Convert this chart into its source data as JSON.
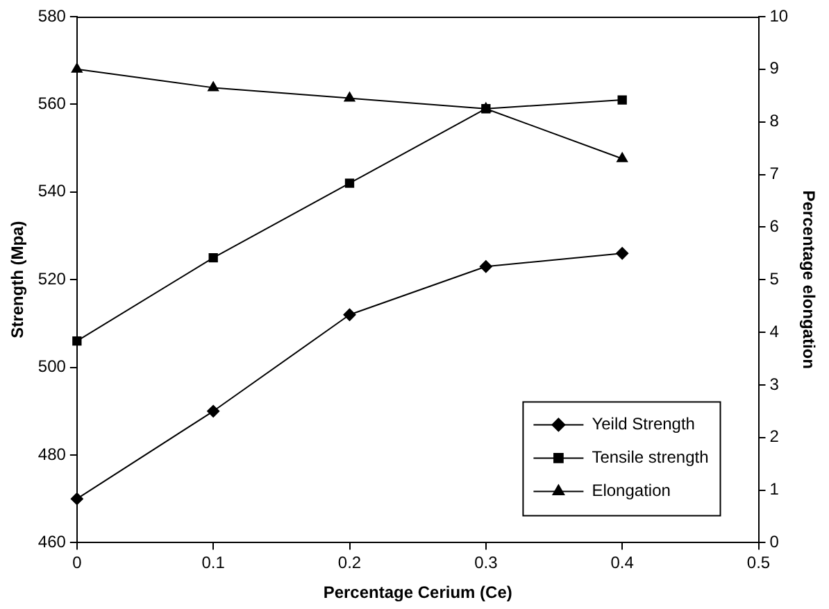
{
  "chart_data": {
    "type": "line",
    "xlabel": "Percentage Cerium (Ce)",
    "ylabel": "Strength (Mpa)",
    "y2label": "Percentage elongation",
    "x": [
      0,
      0.1,
      0.2,
      0.3,
      0.4
    ],
    "xlim": [
      0,
      0.5
    ],
    "xticks": [
      0,
      0.1,
      0.2,
      0.3,
      0.4,
      0.5
    ],
    "ylim": [
      460,
      580
    ],
    "yticks": [
      460,
      480,
      500,
      520,
      540,
      560,
      580
    ],
    "y2lim": [
      0,
      10
    ],
    "y2ticks": [
      0,
      1,
      2,
      3,
      4,
      5,
      6,
      7,
      8,
      9,
      10
    ],
    "grid": false,
    "legend": "bottom right",
    "series": [
      {
        "name": "Yeild Strength",
        "color": "#000000",
        "marker": "diamond",
        "values": [
          470,
          490,
          512,
          523,
          526
        ]
      },
      {
        "name": "Tensile strength",
        "color": "#000000",
        "marker": "square",
        "values": [
          506,
          525,
          542,
          559,
          561
        ]
      },
      {
        "name": "Elongation",
        "color": "#000000",
        "marker": "triangle",
        "axis": "y2",
        "values": [
          9.0,
          8.65,
          8.45,
          8.25,
          7.3
        ]
      }
    ]
  }
}
